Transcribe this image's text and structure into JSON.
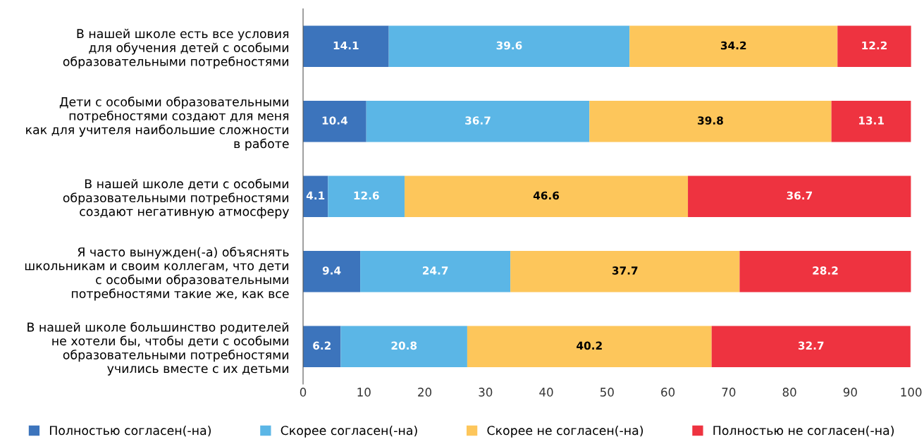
{
  "chart_data": {
    "type": "bar",
    "orientation": "horizontal",
    "stacked": true,
    "data_labels": true,
    "grid": false,
    "legend": "bottom",
    "categories": [
      "В нашей школе есть все условия\nдля обучения детей с особыми\nобразовательными потребностями",
      "Дети с особыми образовательными\nпотребностями создают для меня\nкак для учителя наибольшие сложности\nв работе",
      "В нашей школе дети с особыми\nобразовательными потребностями\nсоздают негативную атмосферу",
      "Я часто вынужден(-а) объяснять\nшкольникам и своим коллегам, что дети\nс особыми образовательными\nпотребностями такие же, как все",
      "В нашей школе большинство родителей\nне хотели бы, чтобы дети с особыми\nобразовательными потребностями\nучились вместе с их детьми"
    ],
    "series": [
      {
        "name": "Полностью согласен(-на)",
        "color": "#3c74bc",
        "values": [
          14.1,
          10.4,
          4.1,
          9.4,
          6.2
        ]
      },
      {
        "name": "Скорее согласен(-на)",
        "color": "#5bb6e6",
        "values": [
          39.6,
          36.7,
          12.6,
          24.7,
          20.8
        ]
      },
      {
        "name": "Скорее не согласен(-на)",
        "color": "#fdc65b",
        "values": [
          34.2,
          39.8,
          46.6,
          37.7,
          40.2
        ]
      },
      {
        "name": "Полностью не согласен(-на)",
        "color": "#ee3340",
        "values": [
          12.2,
          13.1,
          36.7,
          28.2,
          32.7
        ]
      }
    ],
    "xlim": [
      0,
      100
    ],
    "xticks": [
      0,
      10,
      20,
      30,
      40,
      50,
      60,
      70,
      80,
      90,
      100
    ]
  }
}
